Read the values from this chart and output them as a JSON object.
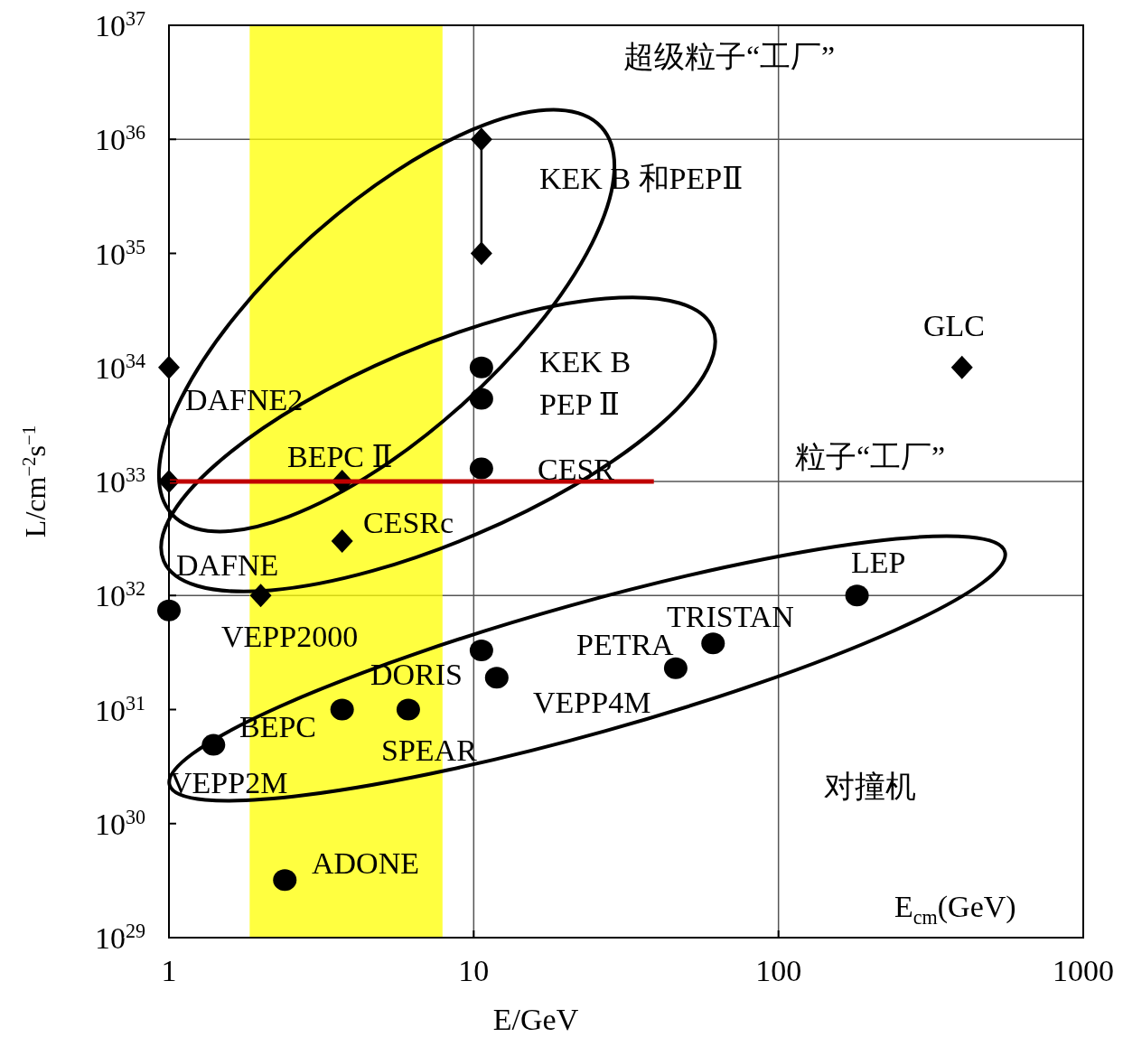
{
  "chart_data": {
    "type": "scatter",
    "xlabel": "E/GeV",
    "ylabel": "L/cm$^{−2}$s$^{−1}$",
    "log": "xy",
    "xlim": [
      1,
      1000
    ],
    "ylim": [
      1e+29,
      1e+37
    ],
    "xticks": [
      1,
      10,
      100,
      1000
    ],
    "yticks": [
      {
        "value": 1e+29,
        "label": "10$^{29}$"
      },
      {
        "value": 1e+30,
        "label": "10$^{30}$"
      },
      {
        "value": 1e+31,
        "label": "10$^{31}$"
      },
      {
        "value": 1e+32,
        "label": "10$^{32}$"
      },
      {
        "value": 1e+33,
        "label": "10$^{33}$"
      },
      {
        "value": 1e+34,
        "label": "10$^{34}$"
      },
      {
        "value": 1e+35,
        "label": "10$^{35}$"
      },
      {
        "value": 1e+36,
        "label": "10$^{36}$"
      },
      {
        "value": 1e+37,
        "label": "10$^{37}$"
      }
    ],
    "series": [
      {
        "type": "line",
        "color": "#000000",
        "marker": "none",
        "x": [
          10.6,
          10.6
        ],
        "values": [
          1e+35,
          1e+36
        ]
      },
      {
        "color": "#000000",
        "marker": "diamond",
        "x": [
          10.6,
          10.6,
          1,
          1,
          3.7,
          3.7,
          2.0,
          400
        ],
        "values": [
          1e+36,
          1e+35,
          1e+34,
          1e+33,
          1e+33,
          3e+32,
          1e+32,
          1e+34
        ]
      },
      {
        "color": "#000000",
        "marker": "circle",
        "x": [
          10.6,
          10.6,
          10.6,
          1,
          10.6,
          11.9,
          46,
          61,
          181,
          3.7,
          6.1,
          1.4,
          2.4
        ],
        "values": [
          1e+34,
          5.3e+33,
          1.3e+33,
          7.4e+31,
          3.3e+31,
          1.9e+31,
          2.3e+31,
          3.8e+31,
          1e+32,
          1e+31,
          1e+31,
          4.9e+30,
          3.2e+29
        ]
      },
      {
        "type": "line",
        "color": "#c00000",
        "marker": "none",
        "x": [
          1,
          39
        ],
        "values": [
          1e+33,
          1e+33
        ]
      }
    ],
    "bands": [
      {
        "axis": "x",
        "from": 1.84,
        "to": 7.9,
        "color": "#ffff00"
      }
    ],
    "ref_lines": [
      {
        "axis": "x",
        "value": 10,
        "color": "#555555"
      },
      {
        "axis": "x",
        "value": 100,
        "color": "#555555"
      },
      {
        "axis": "y",
        "value": 1e+36,
        "color": "#555555"
      },
      {
        "axis": "y",
        "value": 1e+33,
        "color": "#555555"
      },
      {
        "axis": "y",
        "value": 1e+32,
        "color": "#555555"
      }
    ],
    "annotations": [
      "超级粒子“工厂”",
      "KEK B 和PEPⅡ",
      "GLC",
      "KEK B",
      "PEP Ⅱ",
      "CESR",
      "DAFNE2",
      "BEPC Ⅱ",
      "粒子“工厂”",
      "CESRc",
      "DAFNE",
      "LEP",
      "TRISTAN",
      "VEPP2000",
      "PETRA",
      "DORIS",
      "VEPP4M",
      "BEPC",
      "SPEAR",
      "VEPP2M",
      "对撞机",
      "ADONE",
      "E$_{cm}$(GeV)"
    ]
  }
}
